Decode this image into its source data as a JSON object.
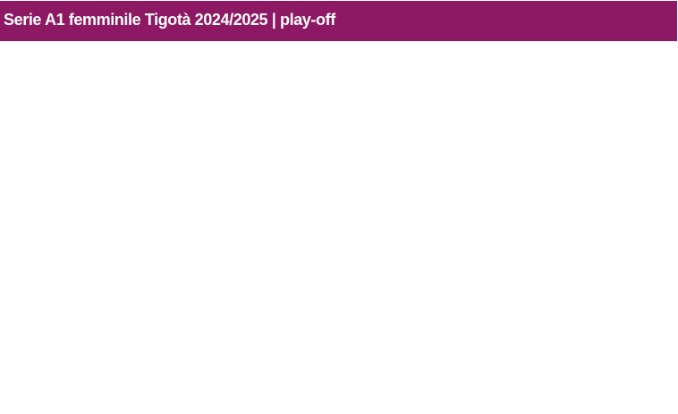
{
  "header": {
    "title": "Serie A1 femminile Tigotà 2024/2025 | play-off",
    "background_color": "#8d1863",
    "text_color": "#ffffff"
  }
}
